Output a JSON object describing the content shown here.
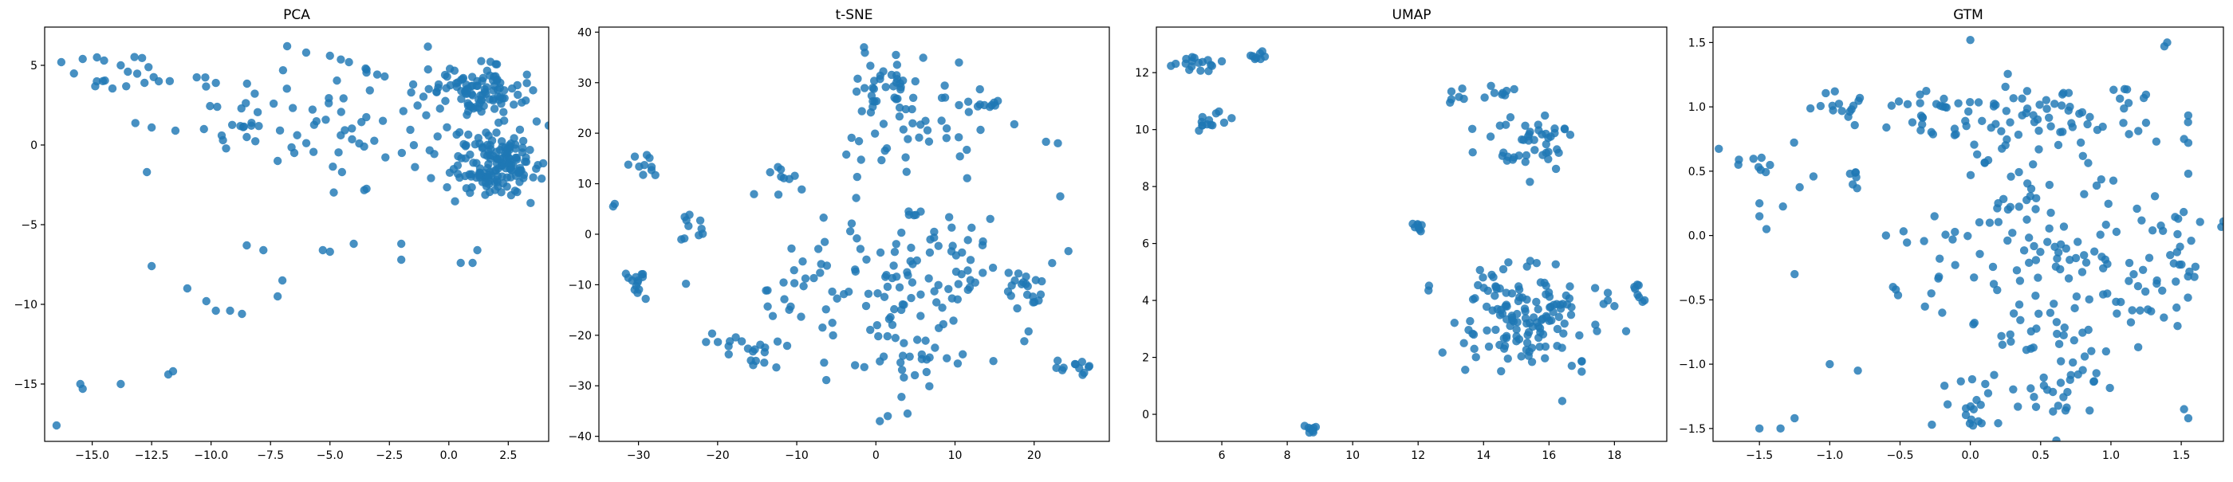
{
  "colors": {
    "point": "#1f77b4",
    "axis": "#000000",
    "background": "#ffffff"
  },
  "chart_data": [
    {
      "type": "scatter",
      "title": "PCA",
      "xlabel": "",
      "ylabel": "",
      "xlim": [
        -17,
        4.2
      ],
      "ylim": [
        -18.6,
        7.4
      ],
      "xticks": [
        -15.0,
        -12.5,
        -10.0,
        -7.5,
        -5.0,
        -2.5,
        0.0,
        2.5
      ],
      "xtick_labels": [
        "−15.0",
        "−12.5",
        "−10.0",
        "−7.5",
        "−5.0",
        "−2.5",
        "0.0",
        "2.5"
      ],
      "yticks": [
        -15,
        -10,
        -5,
        0,
        5
      ],
      "ytick_labels": [
        "−15",
        "−10",
        "−5",
        "0",
        "5"
      ],
      "grid": false,
      "clusters": [
        {
          "cx": 1.2,
          "cy": 3.4,
          "sx": 0.9,
          "sy": 0.8,
          "n": 90
        },
        {
          "cx": 2.0,
          "cy": -1.2,
          "sx": 1.0,
          "sy": 1.0,
          "n": 150
        },
        {
          "cx": -1.5,
          "cy": 1.5,
          "sx": 1.6,
          "sy": 2.0,
          "n": 30
        },
        {
          "cx": -4.5,
          "cy": 1.0,
          "sx": 1.8,
          "sy": 2.2,
          "n": 30
        },
        {
          "cx": -8.0,
          "cy": 2.5,
          "sx": 2.2,
          "sy": 1.8,
          "n": 25
        },
        {
          "cx": -13.5,
          "cy": 4.8,
          "sx": 1.4,
          "sy": 0.6,
          "n": 14
        }
      ],
      "points": [
        [
          -16.3,
          5.2
        ],
        [
          -15.4,
          5.4
        ],
        [
          -14.8,
          5.5
        ],
        [
          -14.5,
          5.3
        ],
        [
          -13.8,
          5.0
        ],
        [
          -13.5,
          4.6
        ],
        [
          -12.8,
          3.9
        ],
        [
          -12.2,
          4.0
        ],
        [
          -12.5,
          1.1
        ],
        [
          -11.5,
          0.9
        ],
        [
          -10.3,
          1.0
        ],
        [
          -12.7,
          -1.7
        ],
        [
          -12.5,
          -7.6
        ],
        [
          -11.0,
          -9.0
        ],
        [
          -10.2,
          -9.8
        ],
        [
          -9.8,
          -10.4
        ],
        [
          -9.2,
          -10.4
        ],
        [
          -8.7,
          -10.6
        ],
        [
          -8.5,
          -6.3
        ],
        [
          -7.8,
          -6.6
        ],
        [
          -7.2,
          -9.5
        ],
        [
          -7.0,
          -8.5
        ],
        [
          -5.3,
          -6.6
        ],
        [
          -5.0,
          -6.7
        ],
        [
          -4.0,
          -6.2
        ],
        [
          -2.0,
          -6.2
        ],
        [
          -2.0,
          -7.2
        ],
        [
          0.5,
          -7.4
        ],
        [
          1.0,
          -7.4
        ],
        [
          1.2,
          -6.6
        ],
        [
          -16.5,
          -17.6
        ],
        [
          -15.4,
          -15.3
        ],
        [
          -15.5,
          -15.0
        ],
        [
          -13.8,
          -15.0
        ],
        [
          -11.8,
          -14.4
        ],
        [
          -11.6,
          -14.2
        ],
        [
          -8.5,
          0.5
        ],
        [
          -9.5,
          0.3
        ],
        [
          -6.8,
          6.2
        ],
        [
          -6.0,
          5.8
        ],
        [
          -5.0,
          5.6
        ],
        [
          -4.2,
          5.2
        ],
        [
          -3.5,
          4.8
        ],
        [
          -2.7,
          4.3
        ],
        [
          -1.5,
          3.8
        ],
        [
          -6.5,
          -0.5
        ],
        [
          -7.2,
          -1.0
        ]
      ]
    },
    {
      "type": "scatter",
      "title": "t-SNE",
      "xlabel": "",
      "ylabel": "",
      "xlim": [
        -35,
        29.5
      ],
      "ylim": [
        -41,
        41
      ],
      "xticks": [
        -30,
        -20,
        -10,
        0,
        10,
        20
      ],
      "xtick_labels": [
        "−30",
        "−20",
        "−10",
        "0",
        "10",
        "20"
      ],
      "yticks": [
        -40,
        -30,
        -20,
        -10,
        0,
        10,
        20,
        30,
        40
      ],
      "ytick_labels": [
        "−40",
        "−30",
        "−20",
        "−10",
        "0",
        "10",
        "20",
        "30",
        "40"
      ],
      "grid": false,
      "clusters": [
        {
          "cx": 1.5,
          "cy": 28.0,
          "sx": 3.0,
          "sy": 3.5,
          "n": 45
        },
        {
          "cx": 12.5,
          "cy": 25.0,
          "sx": 2.0,
          "sy": 1.8,
          "n": 14
        },
        {
          "cx": 5.0,
          "cy": 18.0,
          "sx": 5.0,
          "sy": 3.0,
          "n": 25
        },
        {
          "cx": -13.0,
          "cy": 10.0,
          "sx": 2.0,
          "sy": 2.0,
          "n": 10
        },
        {
          "cx": -28.5,
          "cy": 13.5,
          "sx": 1.2,
          "sy": 1.0,
          "n": 10
        },
        {
          "cx": -23.0,
          "cy": 2.0,
          "sx": 1.5,
          "sy": 2.0,
          "n": 10
        },
        {
          "cx": -30.0,
          "cy": -9.5,
          "sx": 1.0,
          "sy": 1.5,
          "n": 14
        },
        {
          "cx": 5.0,
          "cy": -8.0,
          "sx": 6.0,
          "sy": 8.0,
          "n": 100
        },
        {
          "cx": -8.0,
          "cy": -10.0,
          "sx": 3.0,
          "sy": 6.0,
          "n": 25
        },
        {
          "cx": 20.0,
          "cy": -10.0,
          "sx": 2.0,
          "sy": 3.0,
          "n": 20
        },
        {
          "cx": -14.5,
          "cy": -24.0,
          "sx": 1.5,
          "sy": 2.0,
          "n": 12
        },
        {
          "cx": 24.5,
          "cy": -26.0,
          "sx": 1.2,
          "sy": 1.0,
          "n": 12
        },
        {
          "cx": 4.0,
          "cy": -25.0,
          "sx": 5.0,
          "sy": 3.0,
          "n": 25
        },
        {
          "cx": -19.0,
          "cy": -20.5,
          "sx": 1.5,
          "sy": 1.0,
          "n": 8
        }
      ],
      "points": [
        [
          -33.0,
          6.0
        ],
        [
          -33.2,
          5.5
        ],
        [
          -24.0,
          -9.8
        ],
        [
          21.5,
          18.3
        ],
        [
          23.0,
          18.0
        ],
        [
          23.3,
          7.5
        ],
        [
          0.5,
          -37.0
        ],
        [
          1.5,
          -36.0
        ],
        [
          4.0,
          -35.5
        ],
        [
          10.5,
          34.0
        ],
        [
          -1.5,
          37.0
        ]
      ]
    },
    {
      "type": "scatter",
      "title": "UMAP",
      "xlabel": "",
      "ylabel": "",
      "xlim": [
        4.0,
        19.6
      ],
      "ylim": [
        -0.95,
        13.6
      ],
      "xticks": [
        6,
        8,
        10,
        12,
        14,
        16,
        18
      ],
      "xtick_labels": [
        "6",
        "8",
        "10",
        "12",
        "14",
        "16",
        "18"
      ],
      "yticks": [
        0,
        2,
        4,
        6,
        8,
        10,
        12
      ],
      "ytick_labels": [
        "0",
        "2",
        "4",
        "6",
        "8",
        "10",
        "12"
      ],
      "grid": false,
      "clusters": [
        {
          "cx": 5.3,
          "cy": 12.35,
          "sx": 0.3,
          "sy": 0.15,
          "n": 16
        },
        {
          "cx": 5.5,
          "cy": 10.4,
          "sx": 0.25,
          "sy": 0.2,
          "n": 12
        },
        {
          "cx": 7.1,
          "cy": 12.6,
          "sx": 0.12,
          "sy": 0.1,
          "n": 8
        },
        {
          "cx": 14.4,
          "cy": 11.3,
          "sx": 0.2,
          "sy": 0.15,
          "n": 8
        },
        {
          "cx": 15.3,
          "cy": 9.5,
          "sx": 0.8,
          "sy": 0.5,
          "n": 45
        },
        {
          "cx": 12.0,
          "cy": 6.6,
          "sx": 0.15,
          "sy": 0.1,
          "n": 8
        },
        {
          "cx": 13.1,
          "cy": 11.2,
          "sx": 0.12,
          "sy": 0.15,
          "n": 6
        },
        {
          "cx": 15.3,
          "cy": 3.5,
          "sx": 1.2,
          "sy": 0.9,
          "n": 140
        },
        {
          "cx": 18.8,
          "cy": 4.4,
          "sx": 0.15,
          "sy": 0.3,
          "n": 8
        },
        {
          "cx": 8.75,
          "cy": -0.55,
          "sx": 0.1,
          "sy": 0.1,
          "n": 8
        }
      ],
      "points": [
        [
          6.3,
          10.4
        ],
        [
          6.0,
          12.4
        ],
        [
          13.7,
          2.8
        ],
        [
          13.4,
          2.5
        ],
        [
          17.8,
          4.0
        ],
        [
          18.0,
          3.8
        ],
        [
          17.0,
          1.5
        ]
      ]
    },
    {
      "type": "scatter",
      "title": "GTM",
      "xlabel": "",
      "ylabel": "",
      "xlim": [
        -1.83,
        1.8
      ],
      "ylim": [
        -1.6,
        1.62
      ],
      "xticks": [
        -1.5,
        -1.0,
        -0.5,
        0.0,
        0.5,
        1.0,
        1.5
      ],
      "xtick_labels": [
        "−1.5",
        "−1.0",
        "−0.5",
        "0.0",
        "0.5",
        "1.0",
        "1.5"
      ],
      "yticks": [
        -1.5,
        -1.0,
        -0.5,
        0.0,
        0.5,
        1.0,
        1.5
      ],
      "ytick_labels": [
        "−1.5",
        "−1.0",
        "−0.5",
        "0.0",
        "0.5",
        "1.0",
        "1.5"
      ],
      "grid": false,
      "clusters": [
        {
          "cx": 0.1,
          "cy": 0.95,
          "sx": 0.5,
          "sy": 0.12,
          "n": 60
        },
        {
          "cx": -0.95,
          "cy": 1.05,
          "sx": 0.1,
          "sy": 0.05,
          "n": 12
        },
        {
          "cx": 0.75,
          "cy": 0.95,
          "sx": 0.4,
          "sy": 0.15,
          "n": 40
        },
        {
          "cx": -1.35,
          "cy": 0.55,
          "sx": 0.15,
          "sy": 0.15,
          "n": 12
        },
        {
          "cx": 0.6,
          "cy": 0.1,
          "sx": 0.35,
          "sy": 0.3,
          "n": 70
        },
        {
          "cx": 1.2,
          "cy": -0.25,
          "sx": 0.25,
          "sy": 0.3,
          "n": 35
        },
        {
          "cx": 0.6,
          "cy": -0.7,
          "sx": 0.3,
          "sy": 0.25,
          "n": 45
        },
        {
          "cx": 0.4,
          "cy": -1.25,
          "sx": 0.3,
          "sy": 0.15,
          "n": 30
        },
        {
          "cx": 1.45,
          "cy": -0.45,
          "sx": 0.1,
          "sy": 0.15,
          "n": 14
        },
        {
          "cx": -0.1,
          "cy": -0.2,
          "sx": 0.15,
          "sy": 0.2,
          "n": 14
        },
        {
          "cx": -0.85,
          "cy": 0.45,
          "sx": 0.05,
          "sy": 0.05,
          "n": 6
        },
        {
          "cx": 0.0,
          "cy": -1.4,
          "sx": 0.05,
          "sy": 0.1,
          "n": 10
        }
      ],
      "points": [
        [
          -1.65,
          0.55
        ],
        [
          -1.5,
          0.25
        ],
        [
          -1.5,
          0.15
        ],
        [
          -1.45,
          0.05
        ],
        [
          -1.25,
          -0.3
        ],
        [
          -1.0,
          -1.0
        ],
        [
          -0.8,
          -1.05
        ],
        [
          -1.5,
          -1.5
        ],
        [
          -1.35,
          -1.5
        ],
        [
          -1.25,
          -1.42
        ],
        [
          0.0,
          1.52
        ],
        [
          1.38,
          1.47
        ],
        [
          1.4,
          1.5
        ],
        [
          1.52,
          0.75
        ],
        [
          1.55,
          0.72
        ],
        [
          1.55,
          0.48
        ],
        [
          1.52,
          -1.35
        ],
        [
          1.55,
          -1.42
        ],
        [
          -0.2,
          -0.6
        ],
        [
          -0.55,
          -0.4
        ],
        [
          -0.53,
          -0.42
        ],
        [
          -0.6,
          0.0
        ]
      ]
    }
  ]
}
